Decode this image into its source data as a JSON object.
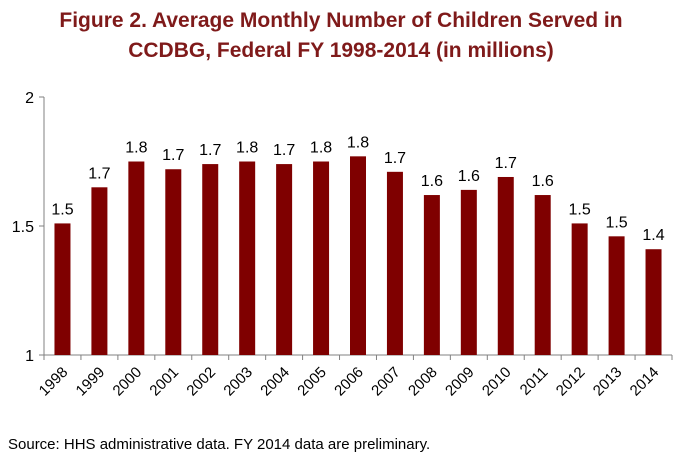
{
  "chart_data": {
    "type": "bar",
    "title_lines": [
      "Figure 2. Average Monthly Number of Children Served in",
      "CCDBG, Federal FY 1998-2014 (in millions)"
    ],
    "categories": [
      "1998",
      "1999",
      "2000",
      "2001",
      "2002",
      "2003",
      "2004",
      "2005",
      "2006",
      "2007",
      "2008",
      "2009",
      "2010",
      "2011",
      "2012",
      "2013",
      "2014"
    ],
    "values": [
      1.51,
      1.65,
      1.75,
      1.72,
      1.74,
      1.75,
      1.74,
      1.75,
      1.77,
      1.71,
      1.62,
      1.64,
      1.69,
      1.62,
      1.51,
      1.46,
      1.41
    ],
    "data_labels": [
      "1.5",
      "1.7",
      "1.8",
      "1.7",
      "1.7",
      "1.8",
      "1.7",
      "1.8",
      "1.8",
      "1.7",
      "1.6",
      "1.6",
      "1.7",
      "1.6",
      "1.5",
      "1.5",
      "1.4"
    ],
    "y_ticks": [
      "1",
      "1.5",
      "2"
    ],
    "y_tick_values": [
      1,
      1.5,
      2
    ],
    "ylim": [
      1,
      2
    ],
    "xlabel": "",
    "ylabel": "",
    "grid": false,
    "legend": "none",
    "bar_color": "#7f0000",
    "title_color": "#7f1a1a"
  },
  "footer": {
    "source": "Source: HHS administrative data.  FY 2014 data are preliminary."
  }
}
